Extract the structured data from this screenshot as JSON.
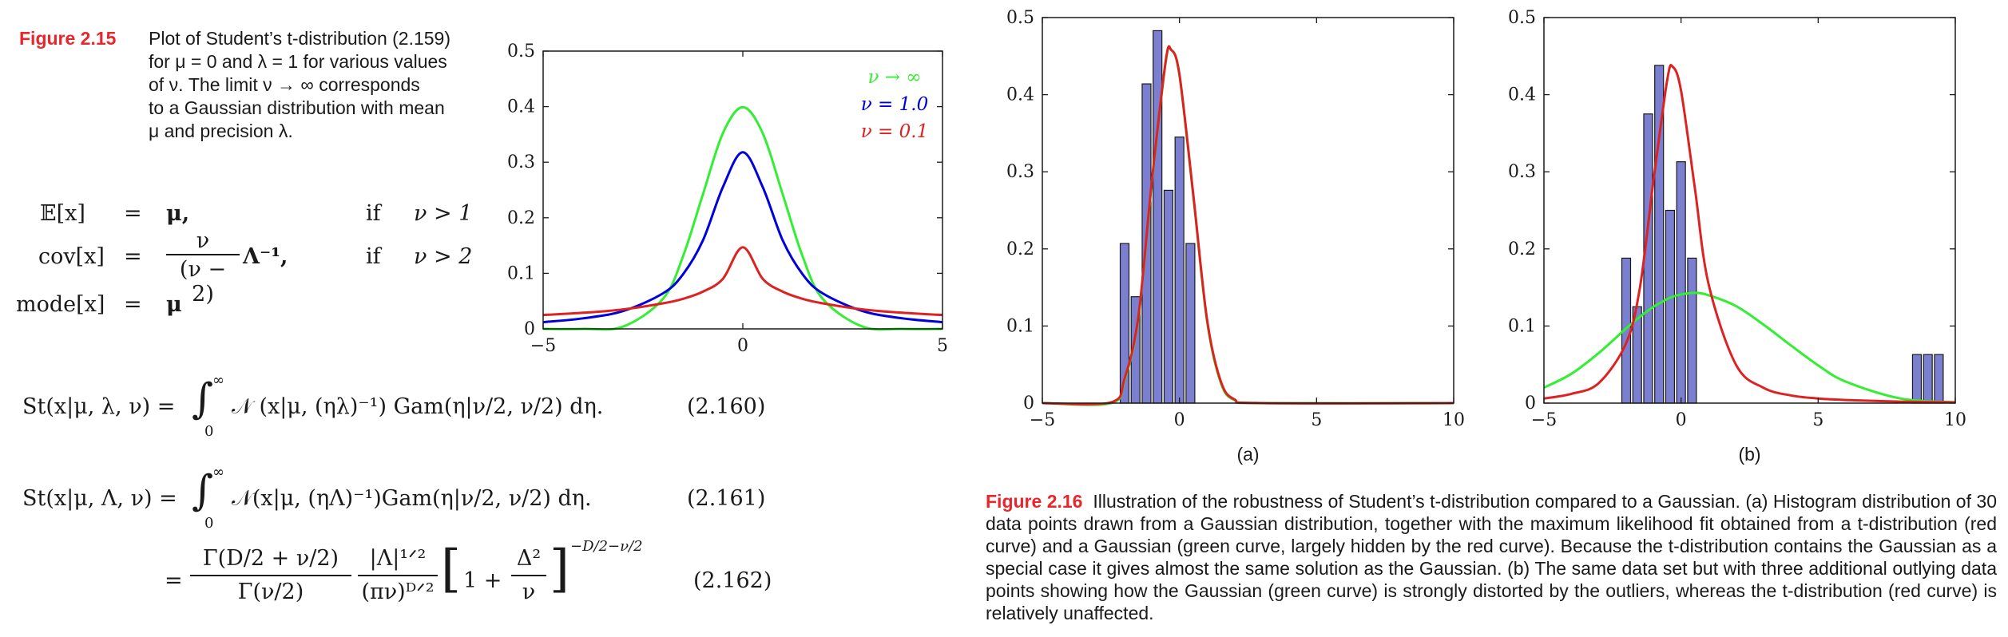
{
  "fig215": {
    "label": "Figure 2.15",
    "text_lines": [
      "Plot of Student’s t-distribution (2.159)",
      "for μ = 0 and λ = 1 for various values",
      "of ν.  The limit ν → ∞ corresponds",
      "to a Gaussian distribution with mean",
      "μ and precision λ."
    ]
  },
  "moments": {
    "rows": [
      {
        "lhs": "𝔼[x]",
        "eq": "=",
        "rhs": "μ,",
        "cond": "if",
        "cond_val": "ν > 1"
      },
      {
        "lhs": "cov[x]",
        "eq": "=",
        "rhs_num": "ν",
        "rhs_den": "(ν − 2)",
        "rhs_tail": "Λ⁻¹,",
        "cond": "if",
        "cond_val": "ν > 2"
      },
      {
        "lhs": "mode[x]",
        "eq": "=",
        "rhs": "μ"
      }
    ]
  },
  "equations": {
    "e160": {
      "lhs": "St(x|μ, λ, ν) =",
      "int_upper": "∞",
      "int_lower": "0",
      "body": "𝒩 (x|μ, (ηλ)⁻¹) Gam(η|ν/2, ν/2) dη.",
      "num": "(2.160)"
    },
    "e161": {
      "lhs": "St(x|μ, Λ, ν) =",
      "int_upper": "∞",
      "int_lower": "0",
      "body": "𝒩(x|μ, (ηΛ)⁻¹)Gam(η|ν/2, ν/2) dη.",
      "num": "(2.161)"
    },
    "e162": {
      "eq": "=",
      "frac1_num": "Γ(D/2 + ν/2)",
      "frac1_den": "Γ(ν/2)",
      "frac2_num": "|Λ|¹ᐟ²",
      "frac2_den": "(πν)ᴰᐟ²",
      "bracket_body": "1 +",
      "frac3_num": "Δ²",
      "frac3_den": "ν",
      "exponent": "−D/2−ν/2",
      "num": "(2.162)"
    }
  },
  "chart_data": [
    {
      "type": "line",
      "title": "",
      "xlabel": "",
      "ylabel": "",
      "xlim": [
        -5,
        5
      ],
      "ylim": [
        0,
        0.5
      ],
      "xticks": [
        "−5",
        "0",
        "5"
      ],
      "yticks": [
        "0",
        "0.1",
        "0.2",
        "0.3",
        "0.4",
        "0.5"
      ],
      "x": [
        -5,
        -4,
        -3,
        -2,
        -1.5,
        -1,
        -0.5,
        0,
        0.5,
        1,
        1.5,
        2,
        3,
        4,
        5
      ],
      "series": [
        {
          "name": "ν → ∞",
          "color": "#33ee33",
          "values": [
            0.0,
            0.0,
            0.004,
            0.054,
            0.13,
            0.242,
            0.352,
            0.399,
            0.352,
            0.242,
            0.13,
            0.054,
            0.004,
            0.0,
            0.0
          ]
        },
        {
          "name": "ν = 1.0",
          "color": "#0000dd",
          "values": [
            0.012,
            0.019,
            0.032,
            0.064,
            0.098,
            0.159,
            0.255,
            0.318,
            0.255,
            0.159,
            0.098,
            0.064,
            0.032,
            0.019,
            0.012
          ]
        },
        {
          "name": "ν = 0.1",
          "color": "#dd2222",
          "values": [
            0.025,
            0.029,
            0.035,
            0.046,
            0.054,
            0.067,
            0.09,
            0.147,
            0.09,
            0.067,
            0.054,
            0.046,
            0.035,
            0.029,
            0.025
          ]
        }
      ],
      "legend_position": "top-right"
    },
    {
      "type": "bar",
      "subtitle": "(a)",
      "xlim": [
        -5,
        10
      ],
      "ylim": [
        0,
        0.5
      ],
      "xticks": [
        "−5",
        "0",
        "5",
        "10"
      ],
      "yticks": [
        "0",
        "0.1",
        "0.2",
        "0.3",
        "0.4",
        "0.5"
      ],
      "bar_color": "#7b7fd0",
      "bars": [
        {
          "x": -2.0,
          "value": 0.207
        },
        {
          "x": -1.6,
          "value": 0.138
        },
        {
          "x": -1.2,
          "value": 0.414
        },
        {
          "x": -0.8,
          "value": 0.483
        },
        {
          "x": -0.4,
          "value": 0.276
        },
        {
          "x": 0.0,
          "value": 0.345
        },
        {
          "x": 0.4,
          "value": 0.207
        }
      ],
      "bar_width": 0.32,
      "x": [
        -5,
        -2.5,
        -2,
        -1.5,
        -1,
        -0.5,
        -0.3,
        0,
        0.5,
        1,
        1.5,
        2,
        3,
        10
      ],
      "series": [
        {
          "color": "#33ee33",
          "values": [
            0,
            0.0,
            0.03,
            0.11,
            0.288,
            0.443,
            0.458,
            0.425,
            0.27,
            0.108,
            0.027,
            0.004,
            0,
            0
          ]
        },
        {
          "color": "#dd2222",
          "values": [
            0,
            0.001,
            0.032,
            0.112,
            0.29,
            0.444,
            0.458,
            0.426,
            0.272,
            0.11,
            0.029,
            0.005,
            0,
            0
          ]
        }
      ]
    },
    {
      "type": "bar",
      "subtitle": "(b)",
      "xlim": [
        -5,
        10
      ],
      "ylim": [
        0,
        0.5
      ],
      "xticks": [
        "−5",
        "0",
        "5",
        "10"
      ],
      "yticks": [
        "0",
        "0.1",
        "0.2",
        "0.3",
        "0.4",
        "0.5"
      ],
      "bar_color": "#7b7fd0",
      "bars": [
        {
          "x": -2.0,
          "value": 0.188
        },
        {
          "x": -1.6,
          "value": 0.125
        },
        {
          "x": -1.2,
          "value": 0.375
        },
        {
          "x": -0.8,
          "value": 0.438
        },
        {
          "x": -0.4,
          "value": 0.25
        },
        {
          "x": 0.0,
          "value": 0.313
        },
        {
          "x": 0.4,
          "value": 0.188
        },
        {
          "x": 8.6,
          "value": 0.063
        },
        {
          "x": 9.0,
          "value": 0.063
        },
        {
          "x": 9.4,
          "value": 0.063
        }
      ],
      "bar_width": 0.32,
      "x": [
        -5,
        -4,
        -3,
        -2,
        -1.5,
        -1,
        -0.5,
        -0.3,
        0,
        0.5,
        1,
        2,
        3,
        4,
        5,
        6,
        8,
        10
      ],
      "series": [
        {
          "color": "#33ee33",
          "values": [
            0.02,
            0.038,
            0.065,
            0.097,
            0.112,
            0.125,
            0.135,
            0.138,
            0.141,
            0.143,
            0.14,
            0.126,
            0.102,
            0.075,
            0.049,
            0.028,
            0.006,
            0.001
          ]
        },
        {
          "color": "#dd2222",
          "values": [
            0.006,
            0.012,
            0.026,
            0.078,
            0.15,
            0.29,
            0.42,
            0.436,
            0.405,
            0.28,
            0.155,
            0.05,
            0.02,
            0.01,
            0.006,
            0.004,
            0.002,
            0.001
          ]
        }
      ]
    }
  ],
  "fig216": {
    "label": "Figure 2.16",
    "text": "Illustration of the robustness of Student’s t-distribution compared to a Gaussian. (a) Histogram distribution of 30 data points drawn from a Gaussian distribution, together with the maximum likelihood fit obtained from a t-distribution (red curve) and a Gaussian (green curve, largely hidden by the red curve). Because the t-distribution contains the Gaussian as a special case it gives almost the same solution as the Gaussian. (b) The same data set but with three additional outlying data points showing how the Gaussian (green curve) is strongly distorted by the outliers, whereas the t-distribution (red curve) is relatively unaffected."
  },
  "colors": {
    "caption_red": "#e8262b",
    "green": "#33ee33",
    "blue": "#0000dd",
    "red": "#dd2222",
    "bar": "#7b7fd0"
  }
}
